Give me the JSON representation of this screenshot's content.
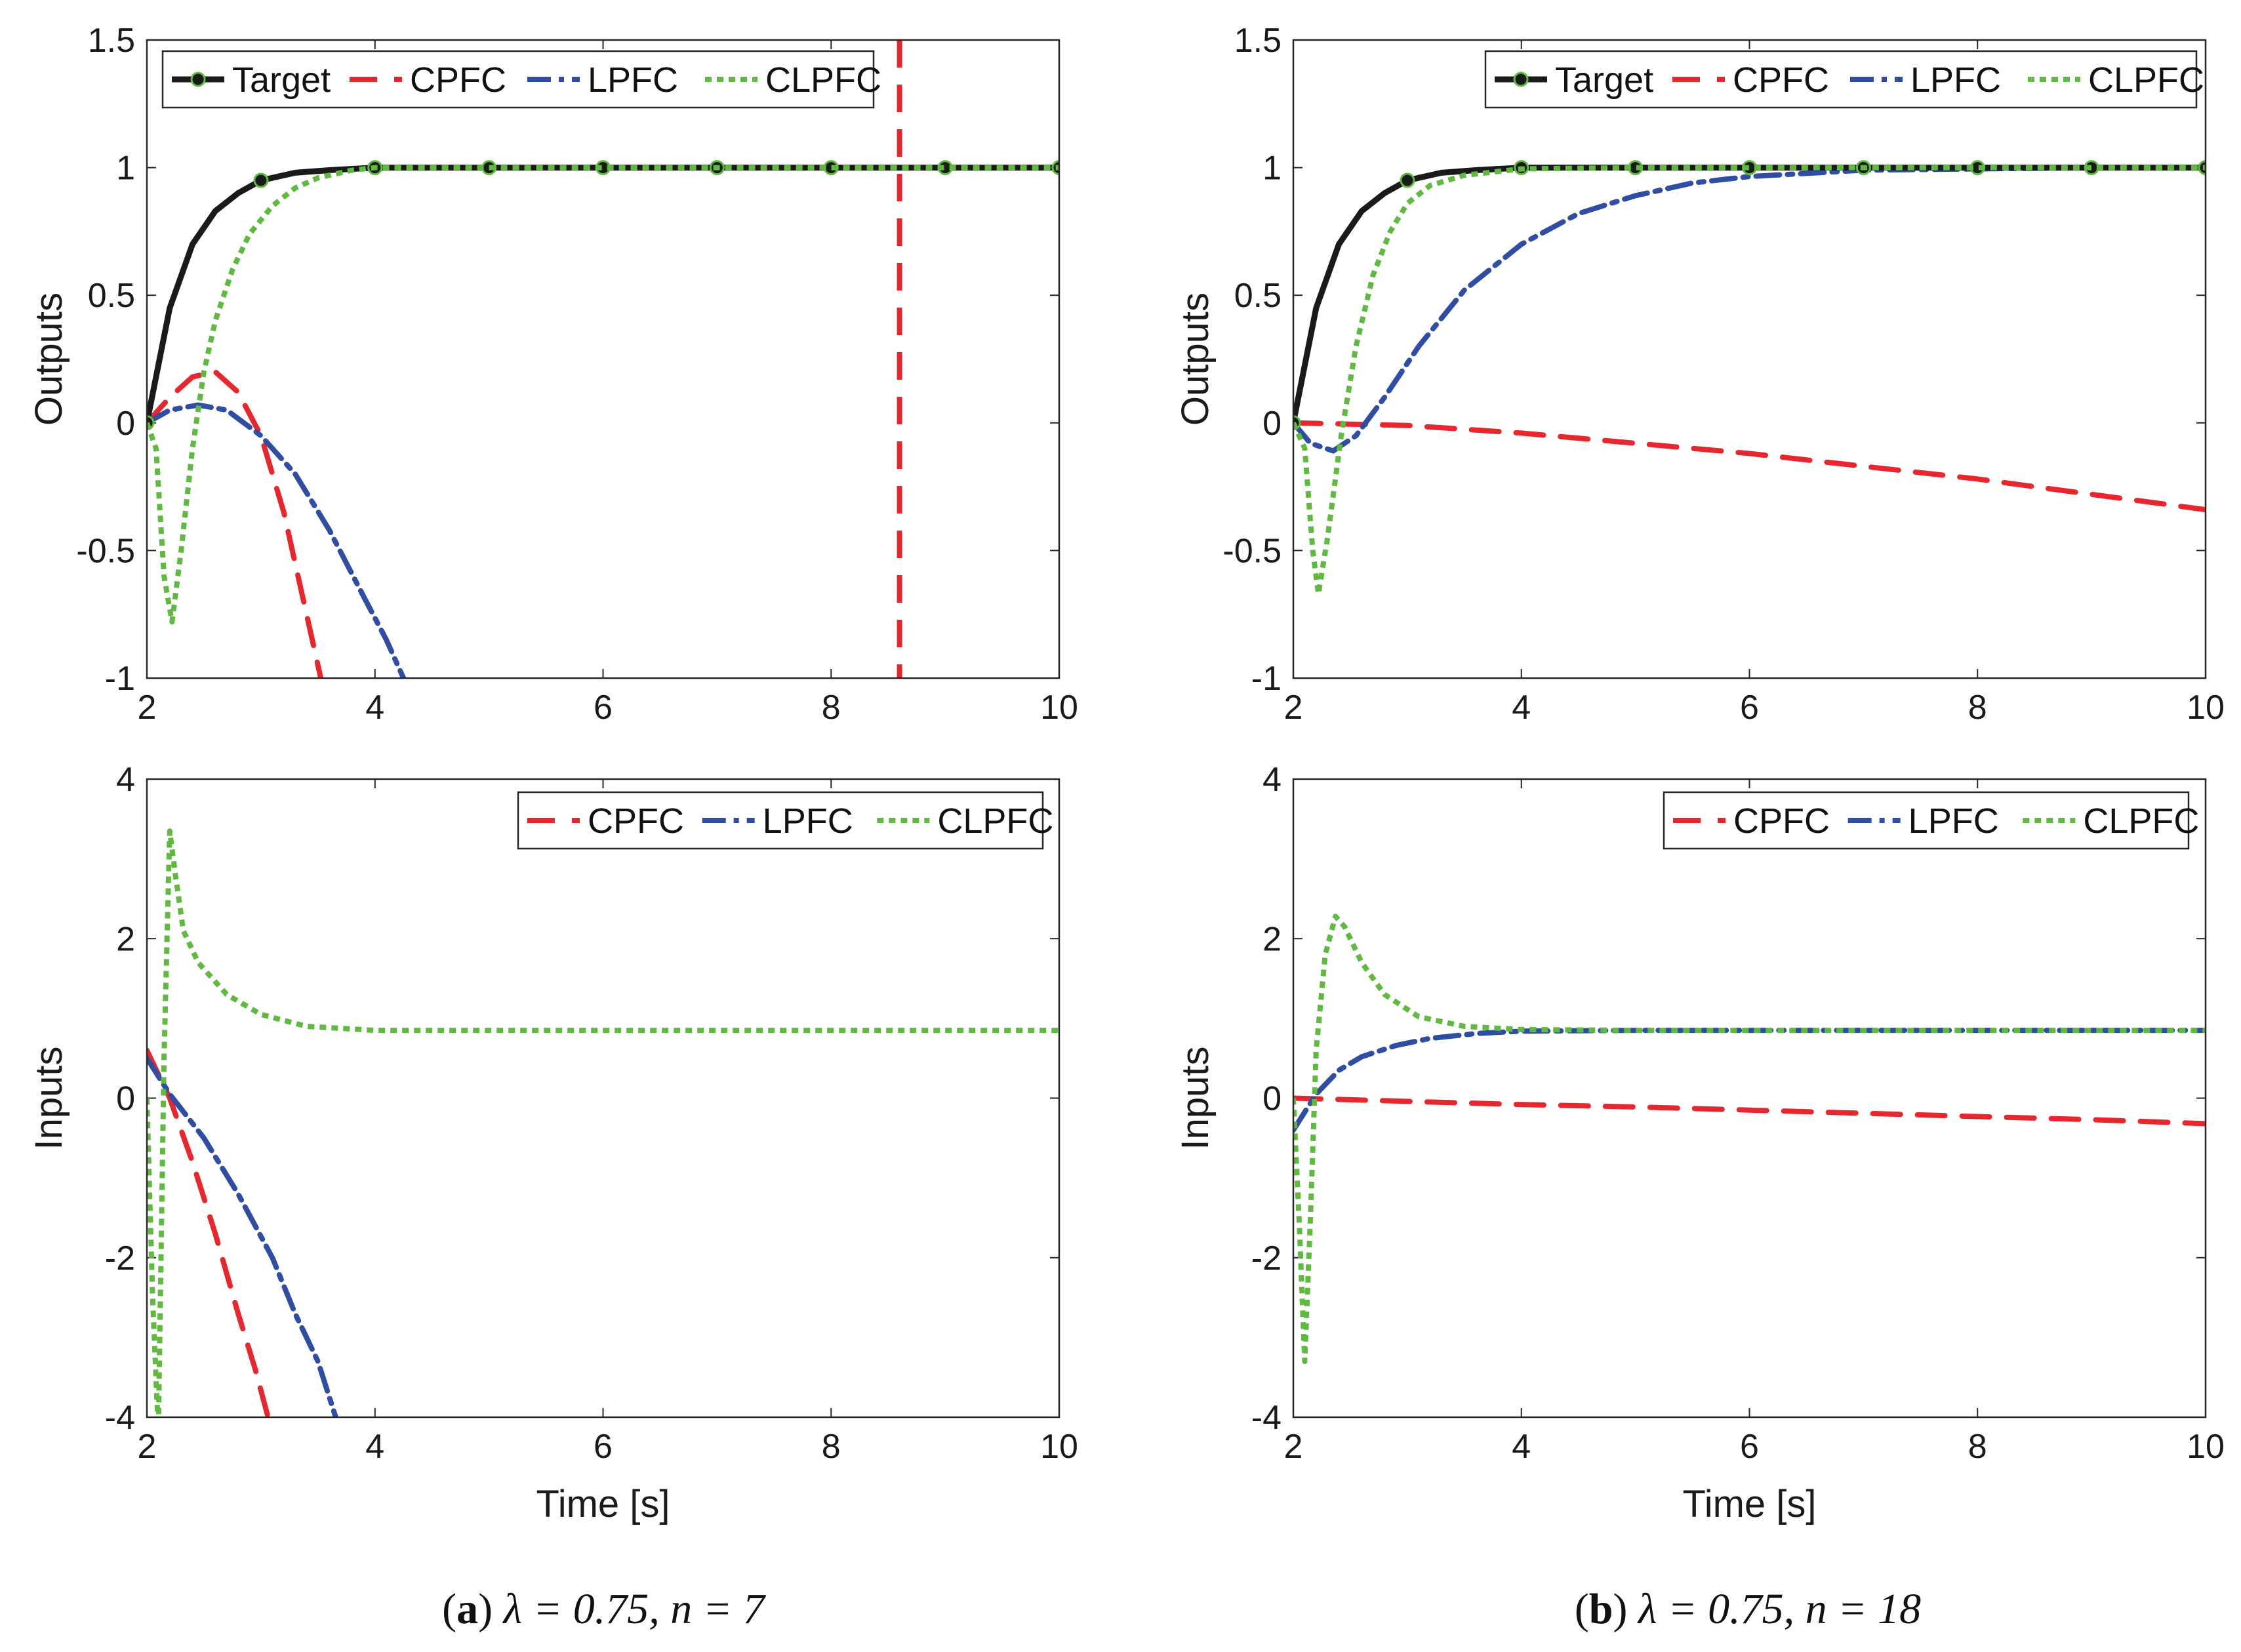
{
  "colors": {
    "Target": "#1a1a1a",
    "CPFC": "#e8262d",
    "LPFC": "#2f4ea3",
    "CLPFC": "#5fba3f"
  },
  "captions": [
    {
      "tag": "a",
      "lambda_text": "λ = 0.75,",
      "n_text": "n = 7"
    },
    {
      "tag": "b",
      "lambda_text": "λ = 0.75,",
      "n_text": "n = 18"
    }
  ],
  "chart_data": [
    {
      "type": "line",
      "title": "",
      "xlabel": "",
      "ylabel": "Outputs",
      "xlim": [
        2,
        10
      ],
      "ylim": [
        -1,
        1.5
      ],
      "xticks": [
        "2",
        "4",
        "6",
        "8",
        "10"
      ],
      "yticks": [
        "-1",
        "-0.5",
        "0",
        "0.5",
        "1",
        "1.5"
      ],
      "legend": [
        "Target",
        "CPFC",
        "LPFC",
        "CLPFC"
      ],
      "legend_position": "top",
      "series": [
        {
          "name": "Target",
          "x": [
            2,
            2.2,
            2.4,
            2.6,
            2.8,
            3,
            3.3,
            3.6,
            4,
            5,
            6,
            7,
            8,
            9,
            10
          ],
          "values": [
            0,
            0.45,
            0.7,
            0.83,
            0.9,
            0.95,
            0.98,
            0.99,
            1,
            1,
            1,
            1,
            1,
            1,
            1
          ],
          "markers_x": [
            2,
            3,
            4,
            5,
            6,
            7,
            8,
            9,
            10
          ]
        },
        {
          "name": "CPFC",
          "x": [
            2,
            2.2,
            2.4,
            2.6,
            2.8,
            3,
            3.2,
            3.4,
            3.55
          ],
          "values": [
            0,
            0.1,
            0.18,
            0.2,
            0.12,
            -0.05,
            -0.35,
            -0.75,
            -1.05
          ],
          "extra_vertical_x": 8.6
        },
        {
          "name": "LPFC",
          "x": [
            2,
            2.2,
            2.45,
            2.7,
            3,
            3.3,
            3.6,
            3.9,
            4.1,
            4.3
          ],
          "values": [
            0,
            0.05,
            0.07,
            0.05,
            -0.05,
            -0.2,
            -0.42,
            -0.68,
            -0.85,
            -1.05
          ]
        },
        {
          "name": "CLPFC",
          "x": [
            2,
            2.08,
            2.15,
            2.22,
            2.3,
            2.4,
            2.5,
            2.6,
            2.75,
            2.9,
            3.1,
            3.3,
            3.5,
            3.8,
            4,
            5,
            6,
            7,
            8,
            9,
            10
          ],
          "values": [
            0,
            -0.1,
            -0.6,
            -0.78,
            -0.5,
            -0.1,
            0.2,
            0.4,
            0.6,
            0.74,
            0.85,
            0.92,
            0.96,
            0.99,
            1,
            1,
            1,
            1,
            1,
            1,
            1
          ]
        }
      ]
    },
    {
      "type": "line",
      "title": "",
      "xlabel": "",
      "ylabel": "Outputs",
      "xlim": [
        2,
        10
      ],
      "ylim": [
        -1,
        1.5
      ],
      "xticks": [
        "2",
        "4",
        "6",
        "8",
        "10"
      ],
      "yticks": [
        "-1",
        "-0.5",
        "0",
        "0.5",
        "1",
        "1.5"
      ],
      "legend": [
        "Target",
        "CPFC",
        "LPFC",
        "CLPFC"
      ],
      "legend_position": "top",
      "series": [
        {
          "name": "Target",
          "x": [
            2,
            2.2,
            2.4,
            2.6,
            2.8,
            3,
            3.3,
            3.6,
            4,
            5,
            6,
            7,
            8,
            9,
            10
          ],
          "values": [
            0,
            0.45,
            0.7,
            0.83,
            0.9,
            0.95,
            0.98,
            0.99,
            1,
            1,
            1,
            1,
            1,
            1,
            1
          ],
          "markers_x": [
            2,
            3,
            4,
            5,
            6,
            7,
            8,
            9,
            10
          ]
        },
        {
          "name": "CPFC",
          "x": [
            2,
            2.5,
            3,
            4,
            5,
            6,
            7,
            8,
            9,
            10
          ],
          "values": [
            0,
            -0.005,
            -0.01,
            -0.04,
            -0.08,
            -0.12,
            -0.17,
            -0.22,
            -0.28,
            -0.34
          ]
        },
        {
          "name": "LPFC",
          "x": [
            2,
            2.15,
            2.35,
            2.55,
            2.8,
            3.1,
            3.5,
            4,
            4.5,
            5,
            5.5,
            6,
            7,
            8,
            9,
            10
          ],
          "values": [
            0,
            -0.08,
            -0.11,
            -0.05,
            0.1,
            0.3,
            0.52,
            0.7,
            0.82,
            0.89,
            0.94,
            0.965,
            0.99,
            0.995,
            1,
            1
          ]
        },
        {
          "name": "CLPFC",
          "x": [
            2,
            2.1,
            2.17,
            2.22,
            2.3,
            2.42,
            2.55,
            2.7,
            2.85,
            3,
            3.2,
            3.5,
            4,
            5,
            6,
            7,
            8,
            9,
            10
          ],
          "values": [
            0,
            -0.1,
            -0.5,
            -0.67,
            -0.45,
            -0.05,
            0.3,
            0.58,
            0.75,
            0.86,
            0.93,
            0.97,
            0.995,
            1,
            1,
            1,
            1,
            1,
            1
          ]
        }
      ]
    },
    {
      "type": "line",
      "title": "",
      "xlabel": "Time [s]",
      "ylabel": "Inputs",
      "xlim": [
        2,
        10
      ],
      "ylim": [
        -4,
        4
      ],
      "xticks": [
        "2",
        "4",
        "6",
        "8",
        "10"
      ],
      "yticks": [
        "-4",
        "-2",
        "0",
        "2",
        "4"
      ],
      "legend": [
        "CPFC",
        "LPFC",
        "CLPFC"
      ],
      "legend_position": "top-right",
      "series": [
        {
          "name": "CPFC",
          "x": [
            2,
            2.2,
            2.4,
            2.6,
            2.8,
            2.95,
            3.1
          ],
          "values": [
            0.6,
            0,
            -0.8,
            -1.7,
            -2.7,
            -3.4,
            -4.2
          ]
        },
        {
          "name": "LPFC",
          "x": [
            2,
            2.2,
            2.5,
            2.8,
            3.1,
            3.3,
            3.5,
            3.7
          ],
          "values": [
            0.5,
            0.05,
            -0.5,
            -1.2,
            -2,
            -2.7,
            -3.3,
            -4.2
          ]
        },
        {
          "name": "CLPFC",
          "x": [
            2,
            2.05,
            2.1,
            2.15,
            2.2,
            2.25,
            2.32,
            2.45,
            2.7,
            3,
            3.4,
            4,
            5,
            6,
            7,
            8,
            9,
            10
          ],
          "values": [
            0,
            -2.5,
            -4.2,
            0.5,
            3.35,
            2.8,
            2.1,
            1.7,
            1.3,
            1.05,
            0.9,
            0.85,
            0.85,
            0.85,
            0.85,
            0.85,
            0.85,
            0.85
          ]
        }
      ]
    },
    {
      "type": "line",
      "title": "",
      "xlabel": "Time [s]",
      "ylabel": "Inputs",
      "xlim": [
        2,
        10
      ],
      "ylim": [
        -4,
        4
      ],
      "xticks": [
        "2",
        "4",
        "6",
        "8",
        "10"
      ],
      "yticks": [
        "-4",
        "-2",
        "0",
        "2",
        "4"
      ],
      "legend": [
        "CPFC",
        "LPFC",
        "CLPFC"
      ],
      "legend_position": "top",
      "series": [
        {
          "name": "CPFC",
          "x": [
            2,
            2.5,
            3,
            4,
            5,
            6,
            7,
            8,
            9,
            10
          ],
          "values": [
            0,
            -0.02,
            -0.04,
            -0.08,
            -0.11,
            -0.15,
            -0.19,
            -0.23,
            -0.27,
            -0.32
          ]
        },
        {
          "name": "LPFC",
          "x": [
            2,
            2.2,
            2.4,
            2.6,
            2.9,
            3.2,
            3.6,
            4,
            5,
            6,
            7,
            8,
            9,
            10
          ],
          "values": [
            -0.4,
            0.05,
            0.35,
            0.52,
            0.66,
            0.75,
            0.81,
            0.84,
            0.85,
            0.85,
            0.85,
            0.85,
            0.85,
            0.85
          ]
        },
        {
          "name": "CLPFC",
          "x": [
            2,
            2.05,
            2.1,
            2.15,
            2.2,
            2.28,
            2.37,
            2.45,
            2.6,
            2.8,
            3.1,
            3.5,
            4,
            5,
            6,
            7,
            8,
            9,
            10
          ],
          "values": [
            0,
            -1.5,
            -3.3,
            -1.5,
            0.6,
            1.8,
            2.28,
            2.15,
            1.7,
            1.3,
            1.02,
            0.9,
            0.86,
            0.85,
            0.85,
            0.85,
            0.85,
            0.85,
            0.85
          ]
        }
      ]
    }
  ]
}
